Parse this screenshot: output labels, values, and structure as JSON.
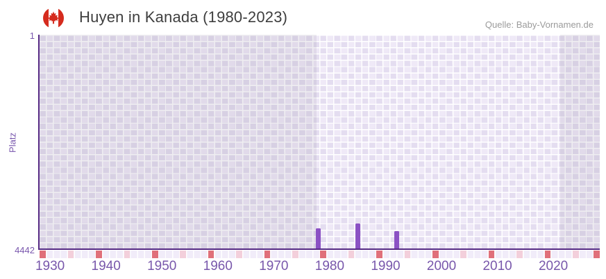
{
  "header": {
    "title": "Huyen in Kanada (1980-2023)",
    "source": "Quelle: Baby-Vornamen.de",
    "flag_icon": "canada-flag-icon"
  },
  "chart_data": {
    "type": "bar",
    "title": "Huyen in Kanada (1980-2023)",
    "xlabel": "",
    "ylabel": "Platz",
    "yaxis": {
      "ticks": [
        "1",
        "4442"
      ],
      "min": 1,
      "max": 4442,
      "inverted": true
    },
    "xaxis": {
      "ticks": [
        1930,
        1940,
        1950,
        1960,
        1970,
        1980,
        1990,
        2000,
        2010,
        2020
      ],
      "start": 1928,
      "end": 2028.3
    },
    "series": [
      {
        "name": "Huyen",
        "points": [
          {
            "year": 1978,
            "rank": 4020
          },
          {
            "year": 1985,
            "rank": 3920
          },
          {
            "year": 1992,
            "rank": 4080
          }
        ]
      }
    ],
    "data_window": {
      "start_year": 1977.6,
      "end_year": 2021.2
    },
    "footer_markers": {
      "red_years": [
        1928,
        1938,
        1948,
        1958,
        1968,
        1978,
        1988,
        1998,
        2008,
        2018,
        2028
      ],
      "pink_years": [
        1933,
        1943,
        1953,
        1963,
        1973,
        1983,
        1993,
        2003,
        2013,
        2023
      ]
    },
    "colors": {
      "bar": "#8b51c4",
      "axis_line": "#562a84",
      "tick_text": "#7857ab",
      "marker_red": "#e0707a",
      "marker_pink": "#f3cfdb"
    },
    "grid": "checkerboard"
  }
}
